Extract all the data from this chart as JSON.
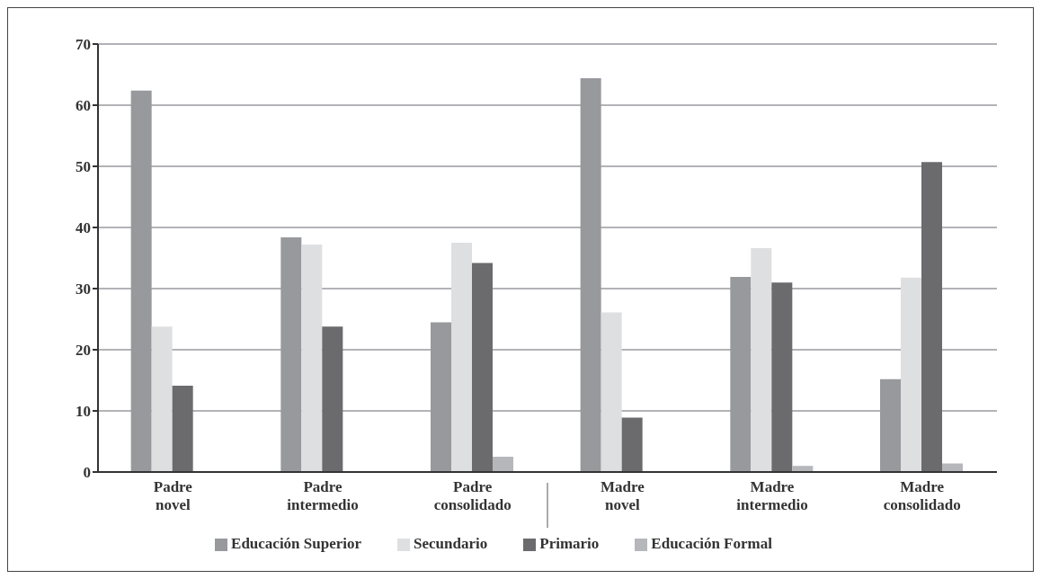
{
  "chart_data": {
    "type": "bar",
    "categories": [
      "Padre novel",
      "Padre intermedio",
      "Padre consolidado",
      "Madre novel",
      "Madre intermedio",
      "Madre consolidado"
    ],
    "series": [
      {
        "name": "Educación Superior",
        "color": "#98999d",
        "values": [
          62.4,
          38.4,
          24.5,
          64.4,
          31.9,
          15.2
        ]
      },
      {
        "name": "Secundario",
        "color": "#dedfe1",
        "values": [
          23.8,
          37.2,
          37.5,
          26.1,
          36.6,
          31.8
        ]
      },
      {
        "name": "Primario",
        "color": "#6b6b6e",
        "values": [
          14.1,
          23.8,
          34.2,
          8.9,
          31.0,
          50.7
        ]
      },
      {
        "name": "Educación Formal",
        "color": "#b6b7ba",
        "values": [
          0,
          0,
          2.5,
          0,
          1.0,
          1.4
        ]
      }
    ],
    "ylim": [
      0,
      70
    ],
    "yticks": [
      0,
      10,
      20,
      30,
      40,
      50,
      60,
      70
    ],
    "grid": "y",
    "legend": "bottom"
  }
}
